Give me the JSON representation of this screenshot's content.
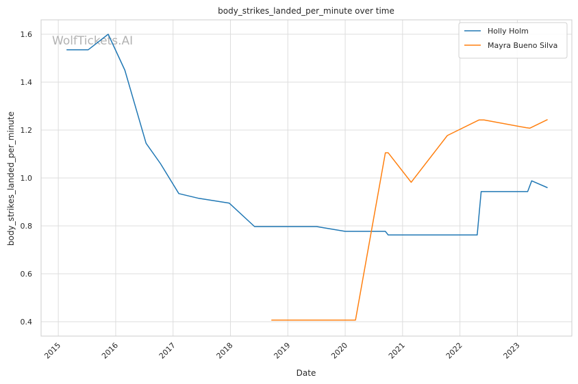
{
  "chart_data": {
    "type": "line",
    "title": "body_strikes_landed_per_minute over time",
    "xlabel": "Date",
    "ylabel": "body_strikes_landed_per_minute",
    "watermark": "WolfTickets.AI",
    "xlim": [
      2014.7,
      2023.95
    ],
    "ylim": [
      0.34,
      1.66
    ],
    "xticks": [
      {
        "value": 2015,
        "label": "2015"
      },
      {
        "value": 2016,
        "label": "2016"
      },
      {
        "value": 2017,
        "label": "2017"
      },
      {
        "value": 2018,
        "label": "2018"
      },
      {
        "value": 2019,
        "label": "2019"
      },
      {
        "value": 2020,
        "label": "2020"
      },
      {
        "value": 2021,
        "label": "2021"
      },
      {
        "value": 2022,
        "label": "2022"
      },
      {
        "value": 2023,
        "label": "2023"
      }
    ],
    "yticks": [
      {
        "value": 0.4,
        "label": "0.4"
      },
      {
        "value": 0.6,
        "label": "0.6"
      },
      {
        "value": 0.8,
        "label": "0.8"
      },
      {
        "value": 1.0,
        "label": "1.0"
      },
      {
        "value": 1.2,
        "label": "1.2"
      },
      {
        "value": 1.4,
        "label": "1.4"
      },
      {
        "value": 1.6,
        "label": "1.6"
      }
    ],
    "grid": true,
    "legend_position": "top-right",
    "series": [
      {
        "name": "Holly Holm",
        "color": "#1f77b4",
        "x": [
          2015.15,
          2015.52,
          2015.87,
          2016.16,
          2016.53,
          2016.78,
          2017.1,
          2017.45,
          2017.98,
          2018.42,
          2019.0,
          2019.5,
          2020.0,
          2020.5,
          2020.7,
          2020.75,
          2021.5,
          2022.3,
          2022.37,
          2023.12,
          2023.18,
          2023.25,
          2023.52
        ],
        "y": [
          1.535,
          1.535,
          1.6,
          1.45,
          1.145,
          1.06,
          0.935,
          0.915,
          0.895,
          0.797,
          0.797,
          0.797,
          0.777,
          0.777,
          0.777,
          0.762,
          0.762,
          0.762,
          0.943,
          0.943,
          0.943,
          0.988,
          0.96
        ]
      },
      {
        "name": "Mayra Bueno Silva",
        "color": "#ff7f0e",
        "x": [
          2018.72,
          2019.5,
          2020.18,
          2020.7,
          2020.75,
          2021.15,
          2021.78,
          2022.33,
          2022.42,
          2023.15,
          2023.22,
          2023.52
        ],
        "y": [
          0.407,
          0.407,
          0.407,
          1.105,
          1.105,
          0.982,
          1.177,
          1.242,
          1.242,
          1.21,
          1.208,
          1.243
        ]
      }
    ]
  }
}
